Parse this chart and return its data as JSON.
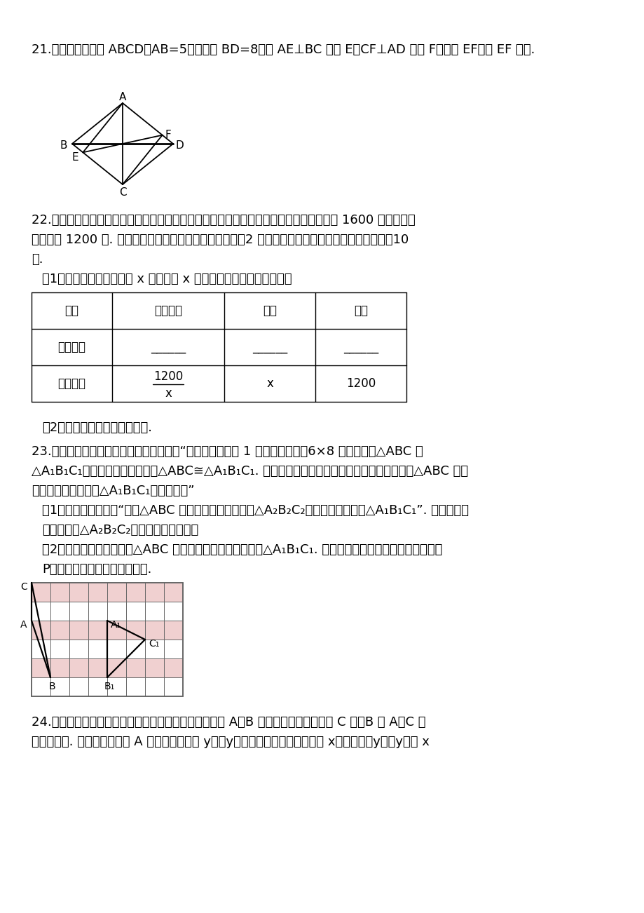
{
  "bg_color": "#ffffff",
  "q21_text": "21.如图，已知菱形 ABCD，AB=5，对角线 BD=8，作 AE⊥BC 于点 E，CF⊥AD 于点 F，连接 EF，求 EF 的长.",
  "q22_text1": "22.为响应「足球进校园」的号召，某校到商场购买甲、乙两种足球，购买甲种足球共花费 1600 元，乙种足",
  "q22_text2": "球共花费 1200 元. 已知甲种足球的单价是乙种足球单价的2 倍，且购买甲种足球的数量比乙种足球少10",
  "q22_text3": "个.",
  "q22_sub1": "（1）设乙种足球的单价为 x 元，用含 x 的代数式表示下表中相关的量",
  "table_headers": [
    "品种",
    "购买个数",
    "单价",
    "总价"
  ],
  "table_row1": [
    "甲种足球",
    "______",
    "______",
    "______"
  ],
  "table_row2_label": "乙种足球",
  "table_row2_col1_num": "1200",
  "table_row2_col1_den": "x",
  "table_row2_col2": "x",
  "table_row2_col3": "1200",
  "q22_sub2": "（2）列方程求乙种足球的单价.",
  "q23_text1": "23.课堂上，老师给出了如下一道探究题：“如图，在边长为 1 的正方形组成的6×8 的方格中，△ABC 和",
  "q23_text2": "△A₁B₁C₁的顶点都在格点上，且△ABC≅△A₁B₁C₁. 请利用平移或旋转变换，设计一种方案，使得△ABC 通过",
  "q23_text3": "一次或两次变换后与△A₁B₁C₁完全重合。”",
  "q23_sub1_text1": "（1）小明的方案是：“先将△ABC 向右平移两个单位得到△A₂B₂C₂，再通过旋转得到△A₁B₁C₁”. 请根据小明",
  "q23_sub1_text2": "的方案画出△A₂B₂C₂，并描述旋转过程；",
  "q23_sub2_text1": "（2）小红通过研究发现，△ABC 只要通过一次旋转就能得到△A₁B₁C₁. 请在图中标出小红方案中的旋转中心",
  "q23_sub2_text2": "P，并简要说明你是如何确定的.",
  "q24_text1": "24.甲、乙两人利用不同的交通工具，沿同一路线分别从 A、B 两地同时出发匀速前往 C 地（B 在 A、C 两",
  "q24_text2": "地的途中）. 设甲、乙两车距 A 地的路程分别为 y甲、y乙（千米），行馿的时间为 x（小时），y甲、y乙与 x"
}
